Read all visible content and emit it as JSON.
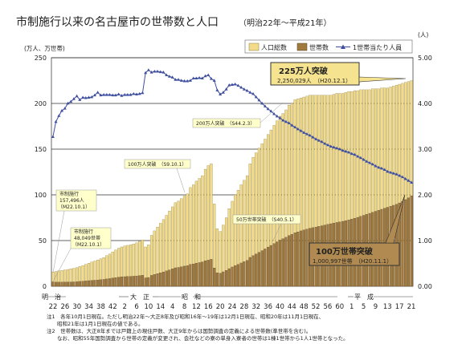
{
  "chart_data": {
    "type": "bar",
    "title": "市制施行以来の名古屋市の世帯数と人口",
    "subtitle": "（明治22年～平成21年）",
    "left_axis_unit": "(万人、万世帯)",
    "right_axis_unit": "(人)",
    "ylim": [
      0,
      250
    ],
    "y2lim": [
      0,
      5.0
    ],
    "left_ticks": [
      "0",
      "50",
      "100",
      "150",
      "200",
      "250"
    ],
    "right_ticks": [
      "0.00",
      "1.00",
      "2.00",
      "3.00",
      "4.00",
      "5.00"
    ],
    "grid": true,
    "legend_position": "top-right",
    "legend": [
      "人口総数",
      "世帯数",
      "1世帯当たり人員"
    ],
    "era_labels": [
      "明　治",
      "大　正",
      "昭　和",
      "平　成"
    ],
    "x_tick_labels": [
      "22",
      "26",
      "30",
      "34",
      "38",
      "42",
      "2",
      "6",
      "10",
      "14",
      "4",
      "8",
      "12",
      "16",
      "20",
      "24",
      "28",
      "32",
      "36",
      "40",
      "44",
      "48",
      "52",
      "56",
      "60",
      "1",
      "5",
      "9",
      "13",
      "17",
      "21"
    ],
    "categories": [
      "M22",
      "M23",
      "M24",
      "M25",
      "M26",
      "M27",
      "M28",
      "M29",
      "M30",
      "M31",
      "M32",
      "M33",
      "M34",
      "M35",
      "M36",
      "M37",
      "M38",
      "M39",
      "M40",
      "M41",
      "M42",
      "M43",
      "M44",
      "M45",
      "T2",
      "T3",
      "T4",
      "T5",
      "T6",
      "T7",
      "T8",
      "T9",
      "T10",
      "T11",
      "T12",
      "T13",
      "T14",
      "T15",
      "S2",
      "S3",
      "S4",
      "S5",
      "S6",
      "S7",
      "S8",
      "S9",
      "S10",
      "S11",
      "S12",
      "S13",
      "S14",
      "S15",
      "S16",
      "S17",
      "S18",
      "S19",
      "S20",
      "S21",
      "S22",
      "S23",
      "S24",
      "S25",
      "S26",
      "S27",
      "S28",
      "S29",
      "S30",
      "S31",
      "S32",
      "S33",
      "S34",
      "S35",
      "S36",
      "S37",
      "S38",
      "S39",
      "S40",
      "S41",
      "S42",
      "S43",
      "S44",
      "S45",
      "S46",
      "S47",
      "S48",
      "S49",
      "S50",
      "S51",
      "S52",
      "S53",
      "S54",
      "S55",
      "S56",
      "S57",
      "S58",
      "S59",
      "S60",
      "S61",
      "S62",
      "S63",
      "H1",
      "H2",
      "H3",
      "H4",
      "H5",
      "H6",
      "H7",
      "H8",
      "H9",
      "H10",
      "H11",
      "H12",
      "H13",
      "H14",
      "H15",
      "H16",
      "H17",
      "H18",
      "H19",
      "H20",
      "H21"
    ],
    "series": [
      {
        "name": "人口総数",
        "values": [
          15.7,
          16.2,
          16.8,
          17.3,
          17.9,
          18.4,
          19.0,
          19.7,
          20.4,
          21.6,
          22.7,
          23.9,
          25.2,
          26.5,
          27.6,
          28.8,
          30.1,
          31.4,
          33.5,
          35.2,
          37.6,
          39.7,
          41.6,
          43.0,
          44.0,
          44.8,
          45.3,
          46.3,
          47.5,
          49.2,
          50.7,
          43.0,
          45.4,
          55.7,
          60.6,
          64.8,
          68.9,
          73.0,
          77.6,
          82.2,
          86.9,
          91.4,
          93.1,
          95.9,
          98.7,
          101.0,
          108.0,
          111.0,
          115.0,
          118.0,
          121.0,
          128.0,
          132.0,
          134.0,
          90.0,
          63.0,
          60.0,
          67.0,
          75.0,
          85.0,
          93.0,
          100.0,
          105.0,
          111.0,
          116.0,
          121.0,
          134.0,
          141.0,
          146.0,
          151.0,
          156.0,
          161.0,
          166.0,
          171.0,
          176.0,
          181.0,
          186.0,
          189.0,
          193.0,
          198.0,
          200.0,
          204.0,
          205.0,
          206.0,
          207.0,
          208.0,
          209.0,
          209.0,
          209.0,
          209.0,
          209.0,
          209.0,
          209.0,
          209.0,
          210.0,
          211.0,
          211.0,
          211.0,
          212.0,
          213.0,
          213.0,
          214.0,
          214.0,
          215.0,
          215.0,
          215.0,
          215.0,
          216.0,
          216.0,
          216.0,
          217.0,
          217.0,
          217.0,
          218.0,
          219.0,
          220.0,
          221.0,
          222.0,
          223.0,
          224.0,
          225.0
        ]
      },
      {
        "name": "世帯数",
        "values": [
          4.8,
          4.5,
          4.5,
          4.5,
          4.6,
          4.6,
          4.7,
          4.8,
          4.9,
          5.3,
          5.5,
          5.8,
          6.1,
          6.4,
          6.6,
          6.8,
          7.2,
          7.5,
          8.0,
          8.4,
          9.0,
          9.5,
          9.9,
          10.3,
          10.5,
          10.7,
          10.8,
          11.0,
          11.3,
          11.7,
          12.0,
          9.2,
          9.6,
          11.9,
          12.9,
          13.8,
          14.7,
          15.6,
          16.8,
          17.9,
          19.0,
          20.2,
          20.6,
          21.3,
          22.0,
          22.5,
          24.0,
          24.4,
          25.3,
          25.9,
          26.6,
          27.8,
          28.6,
          29.5,
          20.0,
          14.7,
          14.3,
          15.8,
          17.4,
          19.3,
          21.1,
          22.6,
          23.9,
          25.5,
          26.9,
          28.3,
          31.6,
          33.5,
          35.3,
          37.1,
          39.0,
          40.9,
          42.8,
          44.7,
          46.7,
          48.6,
          50.5,
          52.0,
          53.6,
          55.4,
          56.9,
          58.6,
          59.5,
          60.6,
          61.6,
          62.5,
          63.4,
          64.1,
          64.8,
          65.5,
          66.2,
          67.0,
          67.7,
          68.4,
          69.1,
          69.8,
          70.4,
          71.0,
          71.8,
          72.6,
          73.4,
          74.4,
          75.4,
          76.5,
          77.6,
          78.7,
          79.8,
          80.9,
          82.0,
          83.1,
          84.2,
          85.3,
          86.4,
          87.5,
          88.6,
          89.7,
          91.2,
          92.7,
          94.8,
          96.8,
          99.0
        ]
      },
      {
        "name": "1世帯当たり人員",
        "values": [
          3.27,
          3.6,
          3.73,
          3.84,
          3.89,
          4.0,
          4.04,
          4.1,
          4.16,
          4.08,
          4.13,
          4.12,
          4.13,
          4.14,
          4.18,
          4.24,
          4.18,
          4.19,
          4.19,
          4.19,
          4.18,
          4.18,
          4.2,
          4.17,
          4.19,
          4.19,
          4.19,
          4.21,
          4.2,
          4.21,
          4.23,
          4.67,
          4.73,
          4.68,
          4.7,
          4.7,
          4.69,
          4.68,
          4.62,
          4.59,
          4.57,
          4.52,
          4.52,
          4.5,
          4.49,
          4.49,
          4.5,
          4.55,
          4.55,
          4.56,
          4.55,
          4.6,
          4.62,
          4.54,
          4.5,
          4.29,
          4.2,
          4.24,
          4.31,
          4.4,
          4.41,
          4.42,
          4.39,
          4.35,
          4.31,
          4.28,
          4.24,
          4.21,
          4.14,
          4.07,
          4.0,
          3.94,
          3.88,
          3.83,
          3.77,
          3.72,
          3.68,
          3.63,
          3.6,
          3.57,
          3.52,
          3.48,
          3.44,
          3.4,
          3.36,
          3.33,
          3.3,
          3.26,
          3.22,
          3.19,
          3.16,
          3.12,
          3.09,
          3.06,
          3.04,
          3.02,
          3.0,
          2.97,
          2.95,
          2.93,
          2.9,
          2.88,
          2.84,
          2.81,
          2.77,
          2.73,
          2.7,
          2.67,
          2.63,
          2.6,
          2.58,
          2.55,
          2.51,
          2.49,
          2.47,
          2.45,
          2.42,
          2.39,
          2.35,
          2.31,
          2.27
        ]
      }
    ],
    "annotations": [
      {
        "text": "市制施行",
        "sub": [
          "157,496人",
          "（M22.10.1）"
        ]
      },
      {
        "text": "市制施行",
        "sub": [
          "48,049世帯",
          "（M22.10.1）"
        ]
      },
      {
        "text": "100万人突破　（S9.10.1）"
      },
      {
        "text": "200万人突破　（S44.2.3）"
      },
      {
        "text": "50万世帯突破　（S40.5.1）"
      },
      {
        "text": "225万人突破",
        "sub": [
          "2,250,029人　（H20.12.1）"
        ]
      },
      {
        "text": "100万世帯突破",
        "sub": [
          "1,000,997世帯　（H20.11.1）"
        ]
      }
    ],
    "notes": [
      "注1　各年10月1日現在。ただし明治22年～大正8年及び昭和16年～19年は12月1日現在、昭和20年は11月1日現在、",
      "　　昭和21年は1月1日現在の値である。",
      "注2　世帯数は、大正8年までは戸籍上の現住戸数、大正9年からは国勢調査の定義による世帯数(準世帯を含む)。",
      "　　なお、昭和55年国勢調査から世帯の定義が変更され、会社などの寮の単身入寮者の世帯は1棟1世帯から1人1世帯となった。"
    ],
    "colors": {
      "population": "#f2dc8c",
      "households": "#a07a3f",
      "ratio": "#3f4fa0"
    }
  }
}
